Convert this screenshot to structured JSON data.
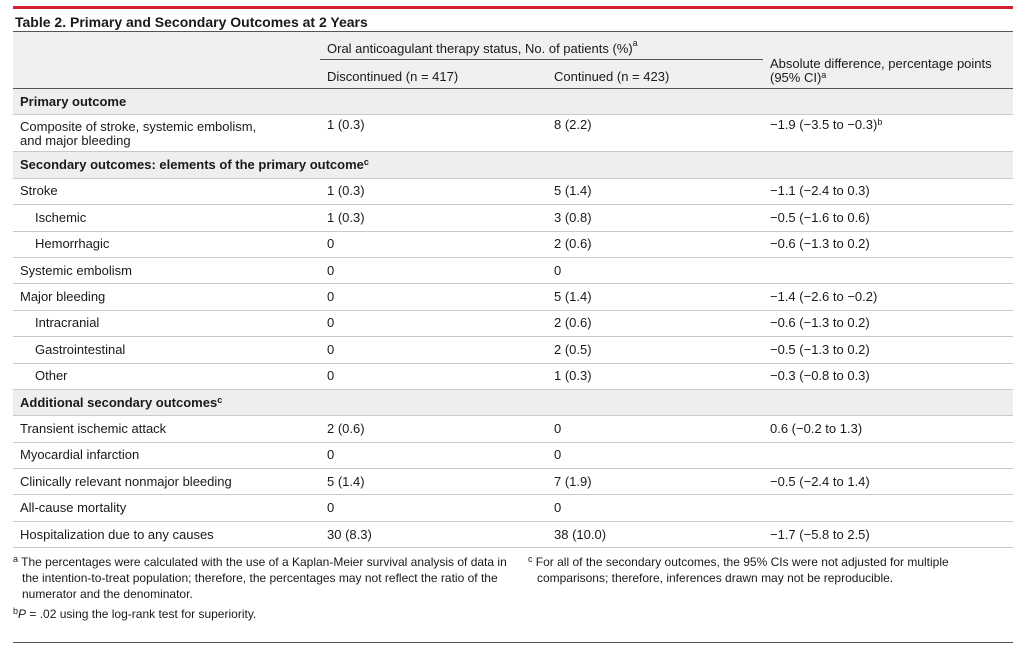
{
  "title": "Table 2. Primary and Secondary Outcomes at 2 Years",
  "header": {
    "group": "Oral anticoagulant therapy status, No. of patients (%)",
    "group_sup": "a",
    "col_discontinued": "Discontinued (n = 417)",
    "col_continued": "Continued (n = 423)",
    "col_absdiff_line1": "Absolute difference, percentage points",
    "col_absdiff_line2": "(95% CI)",
    "col_absdiff_sup": "a"
  },
  "rows": [
    {
      "label": "Primary outcome",
      "section": true
    },
    {
      "label": "Composite of stroke, systemic embolism,",
      "label2": "and major bleeding",
      "disc": "1 (0.3)",
      "cont": "8 (2.2)",
      "diff": "−1.9 (−3.5 to −0.3)",
      "diff_sup": "b"
    },
    {
      "label": "Secondary outcomes: elements of the primary outcome",
      "label_sup": "c",
      "section": true
    },
    {
      "label": "Stroke",
      "disc": "1 (0.3)",
      "cont": "5 (1.4)",
      "diff": "−1.1 (−2.4 to 0.3)"
    },
    {
      "label": "Ischemic",
      "indent": true,
      "disc": "1 (0.3)",
      "cont": "3 (0.8)",
      "diff": "−0.5 (−1.6 to 0.6)"
    },
    {
      "label": "Hemorrhagic",
      "indent": true,
      "disc": "0",
      "cont": "2 (0.6)",
      "diff": "−0.6 (−1.3 to 0.2)"
    },
    {
      "label": "Systemic embolism",
      "disc": "0",
      "cont": "0",
      "diff": ""
    },
    {
      "label": "Major bleeding",
      "disc": "0",
      "cont": "5 (1.4)",
      "diff": "−1.4 (−2.6 to −0.2)"
    },
    {
      "label": "Intracranial",
      "indent": true,
      "disc": "0",
      "cont": "2 (0.6)",
      "diff": "−0.6 (−1.3 to 0.2)"
    },
    {
      "label": "Gastrointestinal",
      "indent": true,
      "disc": "0",
      "cont": "2 (0.5)",
      "diff": "−0.5 (−1.3 to 0.2)"
    },
    {
      "label": "Other",
      "indent": true,
      "disc": "0",
      "cont": "1 (0.3)",
      "diff": "−0.3 (−0.8 to 0.3)"
    },
    {
      "label": "Additional secondary outcomes",
      "label_sup": "c",
      "section": true
    },
    {
      "label": "Transient ischemic attack",
      "disc": "2 (0.6)",
      "cont": "0",
      "diff": "0.6 (−0.2 to 1.3)"
    },
    {
      "label": "Myocardial infarction",
      "disc": "0",
      "cont": "0",
      "diff": ""
    },
    {
      "label": "Clinically relevant nonmajor bleeding",
      "disc": "5 (1.4)",
      "cont": "7 (1.9)",
      "diff": "−0.5 (−2.4 to 1.4)"
    },
    {
      "label": "All-cause mortality",
      "disc": "0",
      "cont": "0",
      "diff": ""
    },
    {
      "label": "Hospitalization due to any causes",
      "disc": "30 (8.3)",
      "cont": "38 (10.0)",
      "diff": "−1.7 (−5.8 to 2.5)"
    }
  ],
  "footnotes": {
    "a_mark": "a",
    "a": "The percentages were calculated with the use of a Kaplan-Meier survival analysis of data in the intention-to-treat population; therefore, the percentages may not reflect the ratio of the numerator and the denominator.",
    "b_mark": "b",
    "b_p": "P",
    "b": " = .02 using the log-rank test for superiority.",
    "c_mark": "c",
    "c": "For all of the secondary outcomes, the 95% CIs were not adjusted for multiple comparisons; therefore, inferences drawn may not be reproducible."
  },
  "colors": {
    "accent_rule": "#d2202f",
    "header_bg": "#f0f0f0",
    "section_bg": "#eeeeee"
  }
}
